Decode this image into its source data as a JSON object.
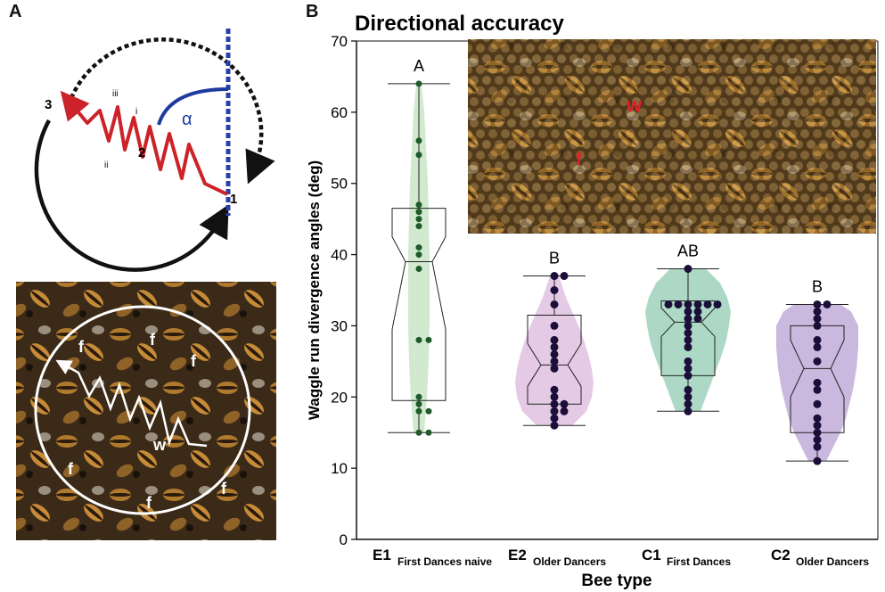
{
  "panels": {
    "a": {
      "letter": "A",
      "diagram": {
        "labels": {
          "n1": "1",
          "n2": "2",
          "n3": "3",
          "i_top": "i",
          "ii_top": "ii",
          "iii_top": "iii",
          "ii_bottom": "ii",
          "alpha": "α"
        }
      },
      "photo": {
        "marks": [
          "f",
          "f",
          "f",
          "f",
          "f",
          "f",
          "w"
        ]
      }
    },
    "b": {
      "letter": "B",
      "inset_photo": {
        "marks": [
          "w",
          "f"
        ]
      }
    }
  },
  "colors": {
    "e1": "#cfe8cc",
    "e2": "#e4c7e4",
    "c1": "#a9d6c3",
    "c2": "#c8b4dc",
    "dot": "#1b0f3a",
    "dot_e1": "#1e5a2a",
    "diagram_red": "#cc2229",
    "diagram_blue": "#1f3aa0",
    "blue_dash": "#2a3fa8"
  },
  "chart_data": {
    "type": "violin-box-strip",
    "title": "Directional accuracy",
    "xlabel": "Bee type",
    "ylabel": "Waggle run divergence angles (deg)",
    "ylim": [
      0,
      70
    ],
    "yticks": [
      0,
      10,
      20,
      30,
      40,
      50,
      60,
      70
    ],
    "grid": false,
    "categories": [
      {
        "main": "E1",
        "sub": "First Dances naive",
        "letter": "A",
        "box": {
          "min": 15,
          "q1": 19.5,
          "median": 39,
          "q3": 46.5,
          "max": 64,
          "notch_low": 29.5,
          "notch_high": 42.5
        },
        "violin": [
          [
            15,
            6
          ],
          [
            20,
            9
          ],
          [
            25,
            11
          ],
          [
            30,
            12
          ],
          [
            35,
            12
          ],
          [
            40,
            12
          ],
          [
            45,
            11
          ],
          [
            50,
            10
          ],
          [
            55,
            8
          ],
          [
            60,
            6
          ],
          [
            64,
            3
          ]
        ],
        "points": [
          15,
          15,
          18,
          18,
          19,
          20,
          28,
          28,
          38,
          40,
          41,
          44,
          45,
          46,
          47,
          54,
          56,
          64
        ]
      },
      {
        "main": "E2",
        "sub": "Older Dancers",
        "letter": "B",
        "box": {
          "min": 16,
          "q1": 19,
          "median": 24.5,
          "q3": 31.5,
          "max": 37,
          "notch_low": 21.5,
          "notch_high": 27.5
        },
        "violin": [
          [
            16,
            20
          ],
          [
            18,
            36
          ],
          [
            20,
            42
          ],
          [
            22,
            44
          ],
          [
            24,
            42
          ],
          [
            26,
            38
          ],
          [
            28,
            33
          ],
          [
            30,
            27
          ],
          [
            32,
            20
          ],
          [
            34,
            13
          ],
          [
            37,
            5
          ]
        ],
        "points": [
          16,
          17,
          18,
          18,
          19,
          19,
          20,
          21,
          24,
          25,
          26,
          27,
          28,
          30,
          33,
          35,
          37,
          37
        ]
      },
      {
        "main": "C1",
        "sub": "First Dances",
        "letter": "AB",
        "box": {
          "min": 18,
          "q1": 23,
          "median": 30.5,
          "q3": 33.5,
          "max": 38,
          "notch_low": 28.5,
          "notch_high": 32.5
        },
        "violin": [
          [
            18,
            14
          ],
          [
            20,
            20
          ],
          [
            22,
            26
          ],
          [
            24,
            32
          ],
          [
            26,
            38
          ],
          [
            28,
            43
          ],
          [
            30,
            46
          ],
          [
            32,
            48
          ],
          [
            34,
            44
          ],
          [
            36,
            36
          ],
          [
            38,
            20
          ]
        ],
        "points": [
          18,
          19,
          20,
          21,
          23,
          24,
          25,
          27,
          28,
          29,
          30,
          31,
          31,
          32,
          32,
          33,
          33,
          33,
          33,
          33,
          33,
          38
        ]
      },
      {
        "main": "C2",
        "sub": "Older Dancers",
        "letter": "B",
        "box": {
          "min": 11,
          "q1": 15,
          "median": 24,
          "q3": 30,
          "max": 33,
          "notch_low": 20,
          "notch_high": 28
        },
        "violin": [
          [
            11,
            10
          ],
          [
            13,
            18
          ],
          [
            15,
            26
          ],
          [
            17,
            32
          ],
          [
            19,
            36
          ],
          [
            21,
            40
          ],
          [
            24,
            44
          ],
          [
            27,
            46
          ],
          [
            30,
            46
          ],
          [
            32,
            38
          ],
          [
            33,
            26
          ]
        ],
        "points": [
          11,
          13,
          14,
          15,
          16,
          17,
          19,
          21,
          22,
          25,
          27,
          28,
          30,
          31,
          32,
          33,
          33
        ]
      }
    ]
  }
}
